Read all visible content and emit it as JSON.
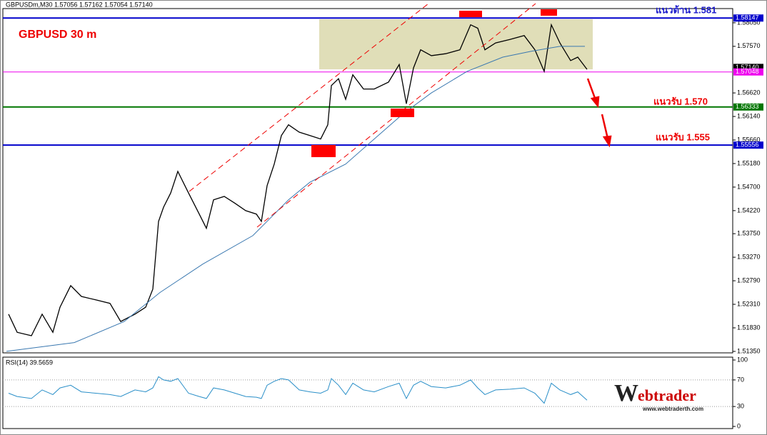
{
  "chart_data": [
    {
      "type": "line",
      "header": "GBPUSDm,M30  1.57056 1.57162 1.57054 1.57140",
      "title": "GBPUSD 30 m",
      "annotations": [
        "แนวต้าน 1.581",
        "แนวรับ 1.570",
        "แนวรับ 1.555"
      ],
      "xlim": [
        0,
        1022
      ],
      "ylim": [
        1.5132,
        1.5834
      ],
      "yticks": [
        {
          "value": 1.5805,
          "label": "1.58050"
        },
        {
          "value": 1.5757,
          "label": "1.57570"
        },
        {
          "value": 1.5662,
          "label": "1.56620"
        },
        {
          "value": 1.5614,
          "label": "1.56140"
        },
        {
          "value": 1.5566,
          "label": "1.55660"
        },
        {
          "value": 1.5518,
          "label": "1.55180"
        },
        {
          "value": 1.547,
          "label": "1.54700"
        },
        {
          "value": 1.5422,
          "label": "1.54220"
        },
        {
          "value": 1.5375,
          "label": "1.53750"
        },
        {
          "value": 1.5327,
          "label": "1.53270"
        },
        {
          "value": 1.5279,
          "label": "1.52790"
        },
        {
          "value": 1.5231,
          "label": "1.52310"
        },
        {
          "value": 1.5183,
          "label": "1.51830"
        },
        {
          "value": 1.5135,
          "label": "1.51350"
        }
      ],
      "levels": [
        {
          "value": 1.58147,
          "color": "#0000cc"
        },
        {
          "value": 1.5714,
          "label": "1.57140",
          "color": "#000000"
        },
        {
          "value": 1.57048,
          "color": "#ee00ee"
        },
        {
          "value": 1.56333,
          "color": "#007700"
        },
        {
          "value": 1.55556,
          "color": "#0000cc"
        }
      ],
      "series": [
        {
          "color": "#000000",
          "x": [
            8,
            20,
            40,
            55,
            70,
            80,
            95,
            110,
            130,
            150,
            165,
            185,
            200,
            210,
            218,
            225,
            235,
            245,
            260,
            275,
            285,
            295,
            310,
            325,
            340,
            355,
            362,
            370,
            380,
            390,
            400,
            415,
            430,
            445,
            455,
            460,
            470,
            480,
            490,
            505,
            520,
            540,
            555,
            565,
            575,
            585,
            600,
            620,
            640,
            655,
            665,
            675,
            690,
            710,
            730,
            745,
            758,
            768,
            780,
            795,
            805,
            818
          ],
          "values": [
            1.5211,
            1.5174,
            1.5167,
            1.5211,
            1.5174,
            1.5225,
            1.5269,
            1.5247,
            1.524,
            1.5233,
            1.5196,
            1.5211,
            1.5225,
            1.5262,
            1.54,
            1.5429,
            1.5458,
            1.5502,
            1.5458,
            1.5415,
            1.5386,
            1.5444,
            1.5451,
            1.5437,
            1.5422,
            1.5415,
            1.54,
            1.5473,
            1.5517,
            1.5575,
            1.5597,
            1.5582,
            1.5575,
            1.5568,
            1.5597,
            1.5677,
            1.5691,
            1.5649,
            1.5699,
            1.567,
            1.567,
            1.5684,
            1.572,
            1.564,
            1.5713,
            1.575,
            1.5738,
            1.5742,
            1.575,
            1.5801,
            1.5794,
            1.575,
            1.5764,
            1.5771,
            1.5779,
            1.575,
            1.5706,
            1.5801,
            1.5764,
            1.5728,
            1.5735,
            1.571
          ]
        },
        {
          "color": "#3a78b0",
          "x": [
            5,
            100,
            170,
            220,
            280,
            350,
            400,
            430,
            480,
            520,
            560,
            600,
            650,
            700,
            740,
            780,
            815
          ],
          "values": [
            1.5135,
            1.5153,
            1.5196,
            1.5255,
            1.5313,
            1.5371,
            1.5444,
            1.548,
            1.5517,
            1.5568,
            1.5619,
            1.5662,
            1.5706,
            1.5735,
            1.5747,
            1.5757,
            1.5757
          ]
        }
      ]
    },
    {
      "type": "line",
      "title": "RSI(14) 39.5659",
      "xlim": [
        0,
        1022
      ],
      "ylim": [
        0,
        100
      ],
      "yticks": [
        100,
        70,
        30,
        0
      ],
      "series": [
        {
          "color": "#2a8fc8",
          "x": [
            8,
            20,
            40,
            55,
            70,
            80,
            95,
            110,
            130,
            150,
            165,
            185,
            200,
            210,
            218,
            225,
            235,
            245,
            260,
            275,
            285,
            295,
            310,
            325,
            340,
            355,
            362,
            370,
            380,
            390,
            400,
            415,
            430,
            445,
            455,
            460,
            470,
            480,
            490,
            505,
            520,
            540,
            555,
            565,
            575,
            585,
            600,
            620,
            640,
            655,
            665,
            675,
            690,
            710,
            730,
            745,
            758,
            768,
            780,
            795,
            805,
            818
          ],
          "values": [
            50,
            45,
            42,
            55,
            48,
            58,
            62,
            52,
            50,
            48,
            45,
            55,
            52,
            58,
            75,
            70,
            68,
            72,
            50,
            45,
            42,
            58,
            55,
            50,
            45,
            44,
            42,
            62,
            68,
            72,
            70,
            55,
            52,
            50,
            55,
            72,
            62,
            48,
            65,
            55,
            52,
            60,
            65,
            42,
            62,
            68,
            60,
            58,
            62,
            70,
            58,
            48,
            55,
            56,
            58,
            50,
            35,
            65,
            55,
            48,
            52,
            39.5659
          ]
        }
      ]
    }
  ]
}
